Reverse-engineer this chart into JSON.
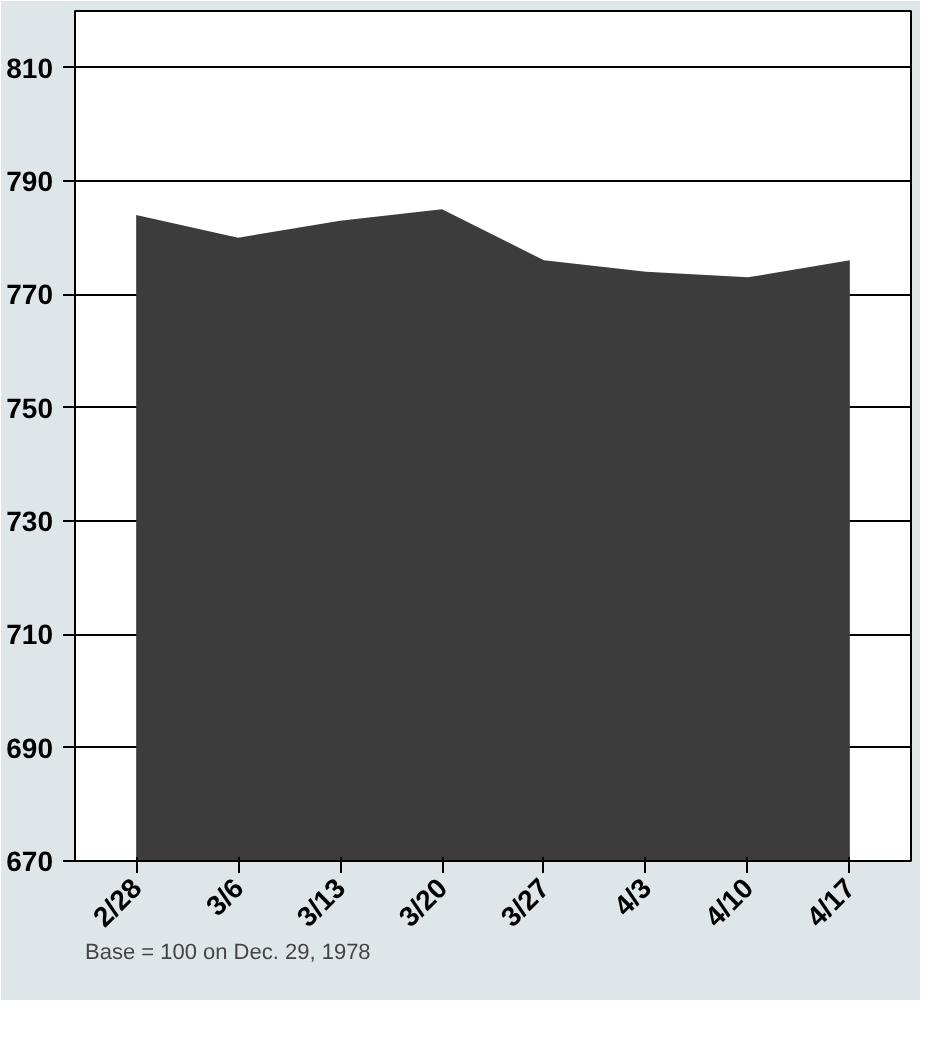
{
  "chart_data": {
    "type": "area",
    "categories": [
      "2/28",
      "3/6",
      "3/13",
      "3/20",
      "3/27",
      "4/3",
      "4/10",
      "4/17"
    ],
    "values": [
      784,
      780,
      783,
      785,
      776,
      774,
      773,
      776
    ],
    "color": "#3c3c3c",
    "ylim": [
      670,
      820
    ],
    "yticks": [
      670,
      690,
      710,
      730,
      750,
      770,
      790,
      810
    ],
    "grid": "y",
    "annotations": [
      "Base = 100 on Dec. 29, 1978"
    ]
  }
}
